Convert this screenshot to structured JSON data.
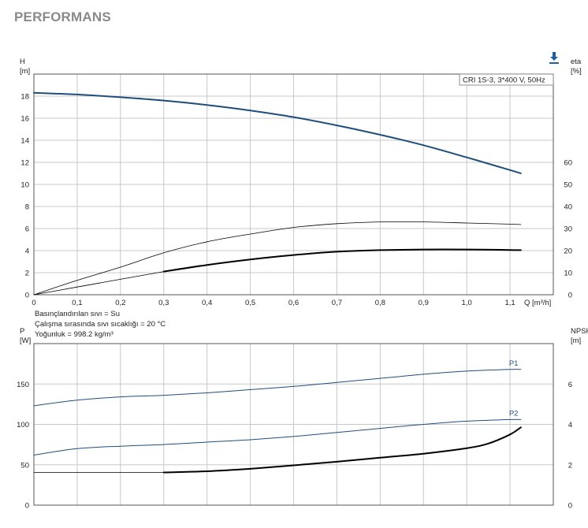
{
  "page": {
    "title": "PERFORMANS",
    "download_icon": "download-icon"
  },
  "notes": [
    "Basınçlandırılan sıvı = Su",
    "Çalışma sırasında sıvı sıcaklığı = 20 °C",
    "Yoğunluk = 998.2 kg/m³"
  ],
  "colors": {
    "blue": "#1f4e7a",
    "black": "#000000",
    "grid": "#c8c8c8"
  },
  "chart_data": [
    {
      "type": "line",
      "legend": "CRI 1S-3, 3*400 V, 50Hz",
      "legend_position": "top-right",
      "grid": true,
      "ylabel": [
        "H",
        "[m]"
      ],
      "y2label": [
        "eta",
        "[%]"
      ],
      "xlabel": "Q [m³/h]",
      "xlim": [
        0,
        1.2
      ],
      "ylim": [
        0,
        20
      ],
      "y2lim": [
        0,
        100
      ],
      "xticks": [
        "0",
        "0,1",
        "0,2",
        "0,3",
        "0,4",
        "0,5",
        "0,6",
        "0,7",
        "0,8",
        "0,9",
        "1,0",
        "1,1"
      ],
      "yticks": [
        "0",
        "2",
        "4",
        "6",
        "8",
        "10",
        "12",
        "14",
        "16",
        "18"
      ],
      "y2ticks": [
        "0",
        "10",
        "20",
        "30",
        "40",
        "50",
        "60"
      ],
      "series": [
        {
          "role": "H",
          "axis": "left",
          "color": "#1f4e7a",
          "width": 2,
          "x": [
            0,
            0.1,
            0.2,
            0.3,
            0.4,
            0.5,
            0.6,
            0.7,
            0.8,
            0.9,
            1.0,
            1.1,
            1.125
          ],
          "y": [
            18.3,
            18.15,
            17.9,
            17.6,
            17.2,
            16.7,
            16.1,
            15.35,
            14.5,
            13.55,
            12.45,
            11.3,
            11.0
          ]
        },
        {
          "role": "eta-thin",
          "axis": "right",
          "color": "#000000",
          "width": 0.8,
          "x": [
            0,
            0.1,
            0.2,
            0.3,
            0.4,
            0.5,
            0.6,
            0.7,
            0.8,
            0.9,
            1.0,
            1.1,
            1.125
          ],
          "y": [
            0,
            6.5,
            12.5,
            19.0,
            24.0,
            27.5,
            30.5,
            32.2,
            33.0,
            33.0,
            32.5,
            32.0,
            31.8
          ]
        },
        {
          "role": "eta-total-thin",
          "axis": "right",
          "color": "#000000",
          "width": 0.8,
          "x": [
            0,
            0.1,
            0.2,
            0.3
          ],
          "y": [
            0,
            3.5,
            7.0,
            10.5
          ]
        },
        {
          "role": "eta-total",
          "axis": "right",
          "color": "#000000",
          "width": 2,
          "x": [
            0.3,
            0.4,
            0.5,
            0.6,
            0.7,
            0.8,
            0.9,
            1.0,
            1.1,
            1.125
          ],
          "y": [
            10.5,
            13.5,
            16.0,
            18.0,
            19.5,
            20.2,
            20.5,
            20.5,
            20.3,
            20.2
          ]
        }
      ]
    },
    {
      "type": "line",
      "grid": true,
      "ylabel": [
        "P",
        "[W]"
      ],
      "y2label": [
        "NPSH",
        "[m]"
      ],
      "xlim": [
        0,
        1.2
      ],
      "ylim": [
        0,
        200
      ],
      "y2lim": [
        0,
        8
      ],
      "yticks": [
        "0",
        "50",
        "100",
        "150"
      ],
      "y2ticks": [
        "0",
        "2",
        "4",
        "6"
      ],
      "series": [
        {
          "name": "P1",
          "axis": "left",
          "color": "#1f4e7a",
          "width": 1,
          "x": [
            0,
            0.1,
            0.2,
            0.3,
            0.4,
            0.5,
            0.6,
            0.7,
            0.8,
            0.9,
            1.0,
            1.1,
            1.125
          ],
          "y": [
            123,
            130,
            134,
            136,
            139,
            143,
            147,
            152,
            157,
            162,
            166,
            168,
            168
          ]
        },
        {
          "name": "P2",
          "axis": "left",
          "color": "#1f4e7a",
          "width": 1,
          "x": [
            0,
            0.1,
            0.2,
            0.3,
            0.4,
            0.5,
            0.6,
            0.7,
            0.8,
            0.9,
            1.0,
            1.1,
            1.125
          ],
          "y": [
            62,
            70,
            73,
            75,
            78,
            81,
            85,
            90,
            95,
            100,
            104,
            106,
            106
          ]
        },
        {
          "role": "NPSH-thin",
          "axis": "right",
          "color": "#000000",
          "width": 0.8,
          "x": [
            0,
            0.3
          ],
          "y": [
            1.62,
            1.62
          ]
        },
        {
          "role": "NPSH",
          "axis": "right",
          "color": "#000000",
          "width": 2,
          "x": [
            0.3,
            0.4,
            0.5,
            0.6,
            0.7,
            0.8,
            0.9,
            1.0,
            1.05,
            1.1,
            1.125
          ],
          "y": [
            1.62,
            1.68,
            1.8,
            1.97,
            2.15,
            2.35,
            2.55,
            2.82,
            3.05,
            3.5,
            3.85
          ]
        }
      ]
    }
  ]
}
